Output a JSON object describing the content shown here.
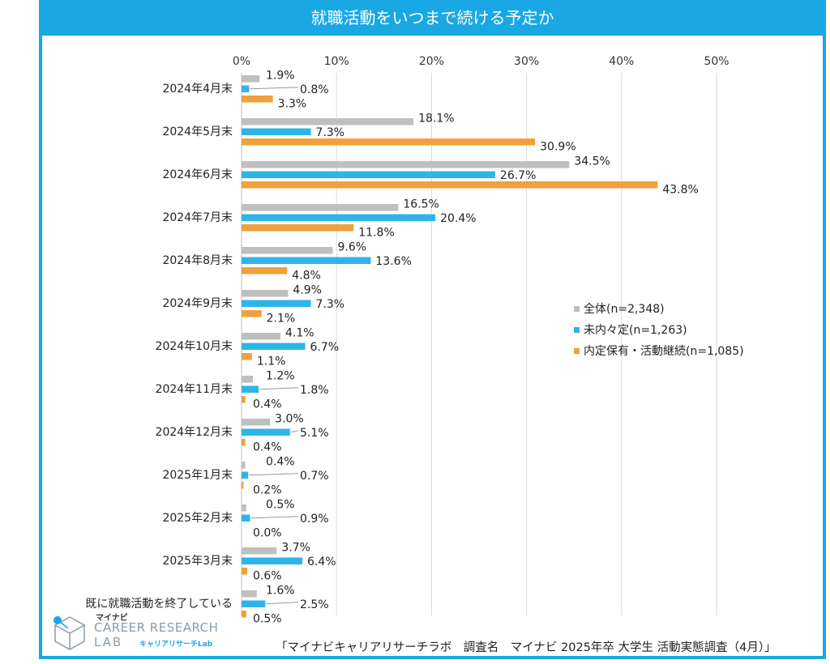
{
  "title": "就職活動をいつまで続ける予定か",
  "source": "「マイナビキャリアリサーチラボ　調査名　マイナビ 2025年卒 大学生 活動実態調査（4月）」",
  "logo": {
    "brand": "マイナビ",
    "line1": "CAREER RESEARCH",
    "line2": "LAB",
    "sub": "キャリアリサーチLab",
    "icon": "cube-logo-icon"
  },
  "colors": {
    "accent": "#1AA8E4",
    "series": [
      "#BFBFBF",
      "#2EB5E8",
      "#F0A03C"
    ]
  },
  "chart_data": {
    "type": "bar",
    "orientation": "horizontal",
    "title": "就職活動をいつまで続ける予定か",
    "categories": [
      "2024年4月末",
      "2024年5月末",
      "2024年6月末",
      "2024年7月末",
      "2024年8月末",
      "2024年9月末",
      "2024年10月末",
      "2024年11月末",
      "2024年12月末",
      "2025年1月末",
      "2025年2月末",
      "2025年3月末",
      "既に就職活動を終了している"
    ],
    "series": [
      {
        "name": "全体(n=2,348)",
        "values": [
          1.9,
          18.1,
          34.5,
          16.5,
          9.6,
          4.9,
          4.1,
          1.2,
          3.0,
          0.4,
          0.5,
          3.7,
          1.6
        ]
      },
      {
        "name": "未内々定(n=1,263)",
        "values": [
          0.8,
          7.3,
          26.7,
          20.4,
          13.6,
          7.3,
          6.7,
          1.8,
          5.1,
          0.7,
          0.9,
          6.4,
          2.5
        ]
      },
      {
        "name": "内定保有・活動継続(n=1,085)",
        "values": [
          3.3,
          30.9,
          43.8,
          11.8,
          4.8,
          2.1,
          1.1,
          0.4,
          0.4,
          0.2,
          0.0,
          0.6,
          0.5
        ]
      }
    ],
    "xlim": [
      0,
      50
    ],
    "xticks": [
      0,
      10,
      20,
      30,
      40,
      50
    ],
    "tick_suffix": "%",
    "grid": true,
    "legend_position": "right"
  }
}
